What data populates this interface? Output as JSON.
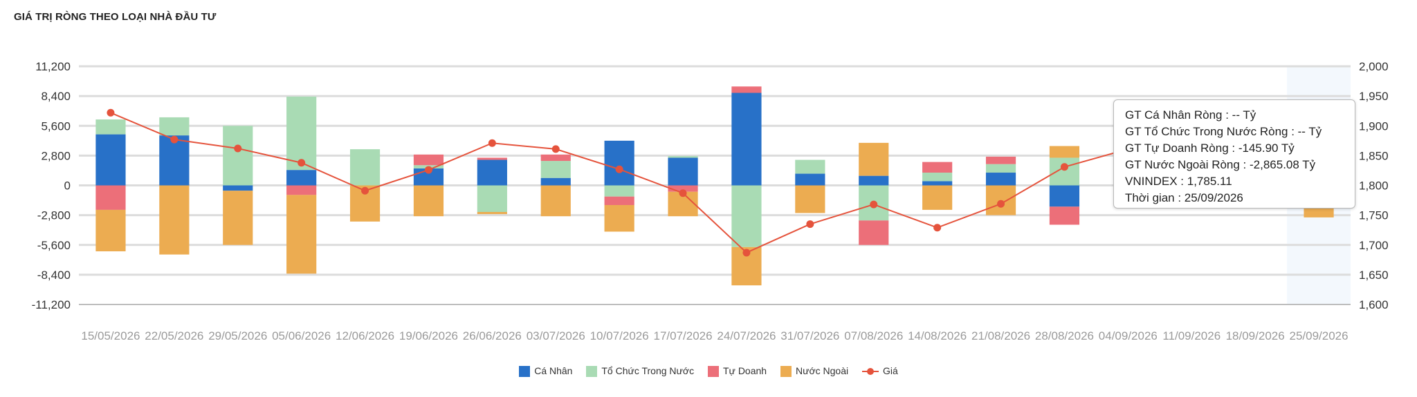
{
  "header": {
    "title": "GIÁ TRỊ RÒNG THEO LOẠI NHÀ ĐẦU TƯ"
  },
  "tooltip": {
    "lines": [
      "GT Cá Nhân Ròng  : -- Tỷ",
      "GT Tổ Chức Trong Nước Ròng : -- Tỷ",
      "GT Tự Doanh Ròng : -145.90 Tỷ",
      "GT Nước Ngoài Ròng : -2,865.08 Tỷ",
      "VNINDEX : 1,785.11",
      "Thời gian : 25/09/2026"
    ]
  },
  "chart_data": {
    "type": "bar",
    "stacked": true,
    "categories": [
      "15/05/2026",
      "22/05/2026",
      "29/05/2026",
      "05/06/2026",
      "12/06/2026",
      "19/06/2026",
      "26/06/2026",
      "03/07/2026",
      "10/07/2026",
      "17/07/2026",
      "24/07/2026",
      "31/07/2026",
      "07/08/2026",
      "14/08/2026",
      "21/08/2026",
      "28/08/2026",
      "04/09/2026",
      "11/09/2026",
      "18/09/2026",
      "25/09/2026"
    ],
    "y_left": {
      "ticks": [
        11200,
        8400,
        5600,
        2800,
        0,
        -2800,
        -5600,
        -8400,
        -11200
      ],
      "tick_labels": [
        "11,200",
        "8,400",
        "5,600",
        "2,800",
        "0",
        "-2,800",
        "-5,600",
        "-8,400",
        "-11,200"
      ],
      "lim": [
        -11200,
        11200
      ]
    },
    "y_right": {
      "ticks": [
        2000,
        1950,
        1900,
        1850,
        1800,
        1750,
        1700,
        1650,
        1600
      ],
      "tick_labels": [
        "2,000",
        "1,950",
        "1,900",
        "1,850",
        "1,800",
        "1,750",
        "1,700",
        "1,650",
        "1,600"
      ],
      "lim": [
        1600,
        2000
      ]
    },
    "grid": true,
    "legend_position": "bottom-center",
    "series": [
      {
        "name": "Cá Nhân",
        "color": "#2871c8",
        "values": [
          4800,
          4700,
          -500,
          1450,
          0,
          1600,
          2400,
          700,
          4200,
          2600,
          8700,
          1100,
          900,
          400,
          1200,
          -2000,
          null,
          null,
          null,
          null
        ]
      },
      {
        "name": "Tổ Chức Trong Nước",
        "color": "#a9dbb4",
        "values": [
          1400,
          1700,
          5600,
          6900,
          3400,
          300,
          -2500,
          1600,
          -1050,
          150,
          -5800,
          1300,
          -3300,
          800,
          800,
          2600,
          null,
          null,
          null,
          null
        ]
      },
      {
        "name": "Tự Doanh",
        "color": "#ec6f79",
        "values": [
          -2300,
          0,
          0,
          -900,
          0,
          1000,
          200,
          600,
          -800,
          -600,
          600,
          0,
          -2300,
          1000,
          700,
          -1700,
          null,
          null,
          null,
          -145.9
        ]
      },
      {
        "name": "Nước Ngoài",
        "color": "#ecac51",
        "values": [
          -3900,
          -6500,
          -5100,
          -7400,
          -3400,
          -2900,
          -200,
          -2900,
          -2500,
          -2300,
          -3600,
          -2600,
          3100,
          -2300,
          -2800,
          1100,
          null,
          null,
          null,
          -2865.08
        ]
      }
    ],
    "line": {
      "name": "Giá",
      "color": "#e5533c",
      "values": [
        1922,
        1877,
        1862,
        1838,
        1791,
        1826,
        1871,
        1861,
        1827,
        1787,
        1687,
        1735,
        1768,
        1729,
        1769,
        1831,
        1861,
        null,
        null,
        1785.11
      ]
    }
  }
}
